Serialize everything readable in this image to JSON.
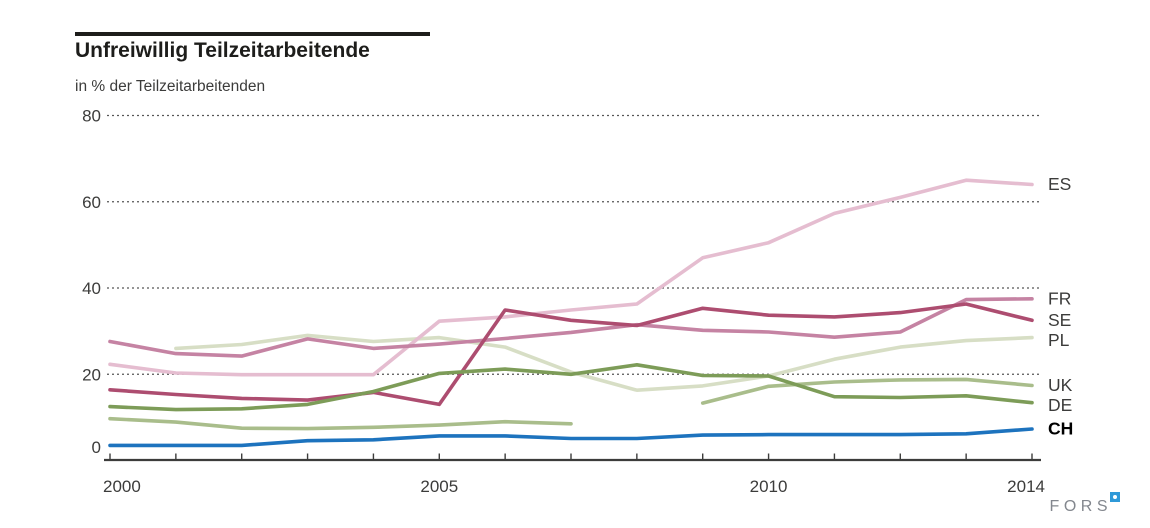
{
  "header": {
    "title": "Unfreiwillig Teilzeitarbeitende",
    "subtitle": "in % der Teilzeitarbeitenden"
  },
  "footer": {
    "logo_text": "FORS"
  },
  "colors": {
    "axis": "#3c3c3b",
    "grid": "#565656",
    "label_text": "#3c3c3b",
    "title_text": "#1d1d1b"
  },
  "chart_data": {
    "type": "line",
    "title": "Unfreiwillig Teilzeitarbeitende",
    "subtitle": "in % der Teilzeitarbeitenden",
    "xlabel": "",
    "ylabel": "in % der Teilzeitarbeitenden",
    "x": [
      2000,
      2001,
      2002,
      2003,
      2004,
      2005,
      2006,
      2007,
      2008,
      2009,
      2010,
      2011,
      2012,
      2013,
      2014
    ],
    "xlim": [
      2000,
      2014
    ],
    "ylim": [
      0,
      80
    ],
    "y_ticks": [
      0,
      20,
      40,
      60,
      80
    ],
    "x_ticks_minor_every_year": true,
    "x_tick_labels": [
      {
        "label": "2000",
        "year": 2000,
        "align": "start"
      },
      {
        "label": "2005",
        "year": 2005,
        "align": "middle"
      },
      {
        "label": "2010",
        "year": 2010,
        "align": "middle"
      },
      {
        "label": "2014",
        "year": 2014,
        "align": "end"
      }
    ],
    "grid": "horizontal dotted at 20/40/60/80",
    "legend_position": "right of line ends",
    "series": [
      {
        "name": "PL",
        "color": "#d7dec5",
        "bold_label": false,
        "values": [
          null,
          26,
          26.9,
          29,
          27.6,
          28.5,
          26.3,
          20.5,
          16.3,
          17.3,
          19.6,
          23.5,
          26.3,
          27.8,
          28.5
        ]
      },
      {
        "name": "ES",
        "color": "#e5bdd0",
        "bold_label": false,
        "values": [
          22.3,
          20.3,
          19.9,
          19.9,
          19.9,
          32.3,
          33.3,
          34.9,
          36.3,
          47,
          50.5,
          57.3,
          61,
          65,
          64
        ]
      },
      {
        "name": "FR",
        "color": "#c583a3",
        "bold_label": false,
        "values": [
          27.6,
          24.8,
          24.2,
          28.2,
          26,
          27,
          28.3,
          29.7,
          31.5,
          30.2,
          29.8,
          28.6,
          29.8,
          37.3,
          37.5
        ]
      },
      {
        "name": "SE",
        "color": "#ad4d70",
        "bold_label": false,
        "values": [
          16.4,
          15.3,
          14.4,
          14,
          15.8,
          13,
          34.9,
          32.5,
          31.3,
          35.3,
          33.7,
          33.3,
          34.3,
          36.3,
          32.5
        ]
      },
      {
        "name": "UK",
        "color": "#a9bd8b",
        "bold_label": false,
        "values": [
          9.7,
          8.9,
          7.5,
          7.4,
          7.7,
          8.2,
          9,
          8.5,
          null,
          13.3,
          17.2,
          18.2,
          18.7,
          18.8,
          17.4
        ]
      },
      {
        "name": "DE",
        "color": "#7d9c58",
        "bold_label": false,
        "values": [
          12.5,
          11.8,
          12,
          13,
          16,
          20.2,
          21.2,
          20,
          22.2,
          19.7,
          19.6,
          14.8,
          14.6,
          15,
          13.4
        ]
      },
      {
        "name": "CH",
        "color": "#1d73be",
        "bold_label": true,
        "values": [
          3.5,
          3.5,
          3.5,
          4.6,
          4.8,
          5.7,
          5.7,
          5.1,
          5.1,
          5.9,
          6,
          6,
          6,
          6.2,
          7.3
        ]
      }
    ]
  }
}
